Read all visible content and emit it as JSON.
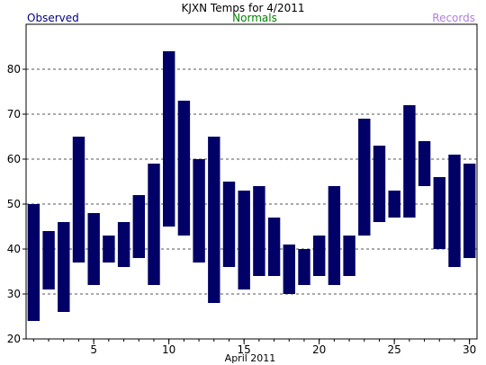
{
  "chart_data": {
    "type": "bar",
    "title": "KJXN Temps for 4/2011",
    "legend": {
      "observed": "Observed",
      "normals": "Normals",
      "records": "Records",
      "colors": {
        "observed": "#000080",
        "normals": "#008000",
        "records": "#b07fd8"
      }
    },
    "xlabel": "April 2011",
    "ylabel": "",
    "xlim": [
      0.5,
      30.5
    ],
    "ylim": [
      20,
      90
    ],
    "x_ticks": [
      5,
      10,
      15,
      20,
      25,
      30
    ],
    "x_tick_labels": [
      "5",
      "10",
      "15",
      "20",
      "25",
      "30"
    ],
    "y_ticks": [
      20,
      30,
      40,
      50,
      60,
      70,
      80
    ],
    "y_tick_labels": [
      "20",
      "30",
      "40",
      "50",
      "60",
      "70",
      "80"
    ],
    "grid": "horizontal dashed",
    "bar_color": "#000066",
    "days": [
      1,
      2,
      3,
      4,
      5,
      6,
      7,
      8,
      9,
      10,
      11,
      12,
      13,
      14,
      15,
      16,
      17,
      18,
      19,
      20,
      21,
      22,
      23,
      24,
      25,
      26,
      27,
      28,
      29,
      30
    ],
    "high": [
      50,
      44,
      46,
      65,
      48,
      43,
      46,
      52,
      59,
      84,
      73,
      60,
      65,
      55,
      53,
      54,
      47,
      41,
      40,
      43,
      54,
      43,
      69,
      63,
      53,
      72,
      64,
      56,
      61,
      59
    ],
    "low": [
      24,
      31,
      26,
      37,
      32,
      37,
      36,
      38,
      32,
      45,
      43,
      37,
      28,
      36,
      31,
      34,
      34,
      30,
      32,
      34,
      32,
      34,
      43,
      46,
      47,
      47,
      54,
      40,
      36,
      38
    ]
  }
}
